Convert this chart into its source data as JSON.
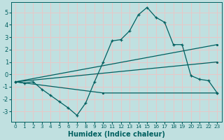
{
  "bg_color": "#c0e0e0",
  "grid_color": "#e8c8c8",
  "line_color": "#006060",
  "xlabel": "Humidex (Indice chaleur)",
  "xlim": [
    -0.5,
    23.5
  ],
  "ylim": [
    -3.8,
    5.8
  ],
  "yticks": [
    -3,
    -2,
    -1,
    0,
    1,
    2,
    3,
    4,
    5
  ],
  "xticks": [
    0,
    1,
    2,
    3,
    4,
    5,
    6,
    7,
    8,
    9,
    10,
    11,
    12,
    13,
    14,
    15,
    16,
    17,
    18,
    19,
    20,
    21,
    22,
    23
  ],
  "line1_x": [
    0,
    1,
    2,
    3,
    4,
    5,
    6,
    7,
    8,
    9,
    10,
    11,
    12,
    13,
    14,
    15,
    16,
    17,
    18,
    19,
    20,
    21,
    22,
    23
  ],
  "line1_y": [
    -0.6,
    -0.7,
    -0.6,
    -1.2,
    -1.7,
    -2.2,
    -2.7,
    -3.3,
    -2.3,
    -0.6,
    1.0,
    2.7,
    2.8,
    3.5,
    4.8,
    5.4,
    4.6,
    4.2,
    2.4,
    2.4,
    -0.1,
    -0.4,
    -0.5,
    -1.5
  ],
  "line2_x": [
    0,
    23
  ],
  "line2_y": [
    -0.6,
    2.4
  ],
  "line3_x": [
    0,
    23
  ],
  "line3_y": [
    -0.6,
    1.0
  ],
  "line4_x": [
    0,
    10,
    23
  ],
  "line4_y": [
    -0.6,
    -1.5,
    -1.5
  ]
}
